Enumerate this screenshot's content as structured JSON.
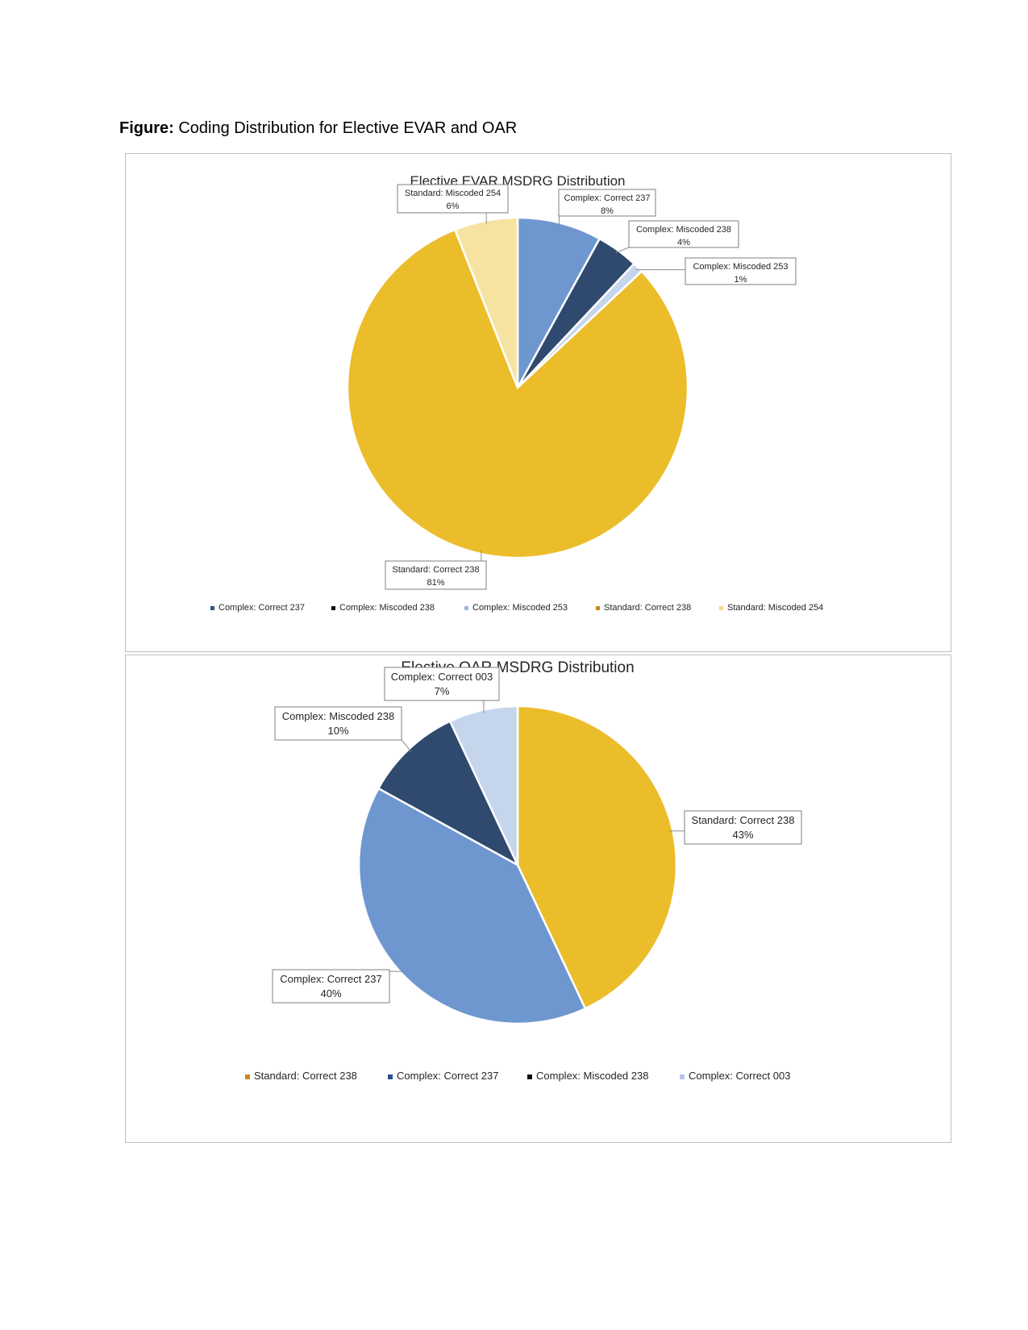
{
  "heading": {
    "bold": "Figure:",
    "text": " Coding Distribution for Elective EVAR and OAR"
  },
  "chart_data": [
    {
      "type": "pie",
      "title": "Elective EVAR MSDRG Distribution",
      "legend_position": "bottom",
      "slices": [
        {
          "name": "Complex: Correct 237",
          "value": 8,
          "label": "8%",
          "color": "#6f97cf",
          "legend_color": "#2f4f8f"
        },
        {
          "name": "Complex: Miscoded 238",
          "value": 4,
          "label": "4%",
          "color": "#2f4a6e",
          "legend_color": "#0d0d0d"
        },
        {
          "name": "Complex: Miscoded 253",
          "value": 1,
          "label": "1%",
          "color": "#c5d6ec",
          "legend_color": "#9fb7d9"
        },
        {
          "name": "Standard: Correct 238",
          "value": 81,
          "label": "81%",
          "color": "#ebbd2b",
          "legend_color": "#c98a1c"
        },
        {
          "name": "Standard: Miscoded 254",
          "value": 6,
          "label": "6%",
          "color": "#f7e3a1",
          "legend_color": "#f2d88c"
        }
      ]
    },
    {
      "type": "pie",
      "title": "Elective OAR MSDRG Distribution",
      "legend_position": "bottom",
      "slices": [
        {
          "name": "Standard: Correct 238",
          "value": 43,
          "label": "43%",
          "color": "#ebbd2b",
          "legend_color": "#c98a1c"
        },
        {
          "name": "Complex: Correct 237",
          "value": 40,
          "label": "40%",
          "color": "#6f97cf",
          "legend_color": "#2f4f8f"
        },
        {
          "name": "Complex: Miscoded 238",
          "value": 10,
          "label": "10%",
          "color": "#2f4a6e",
          "legend_color": "#0d0d0d"
        },
        {
          "name": "Complex: Correct 003",
          "value": 7,
          "label": "7%",
          "color": "#c5d6ec",
          "legend_color": "#b5c8e4"
        }
      ]
    }
  ]
}
